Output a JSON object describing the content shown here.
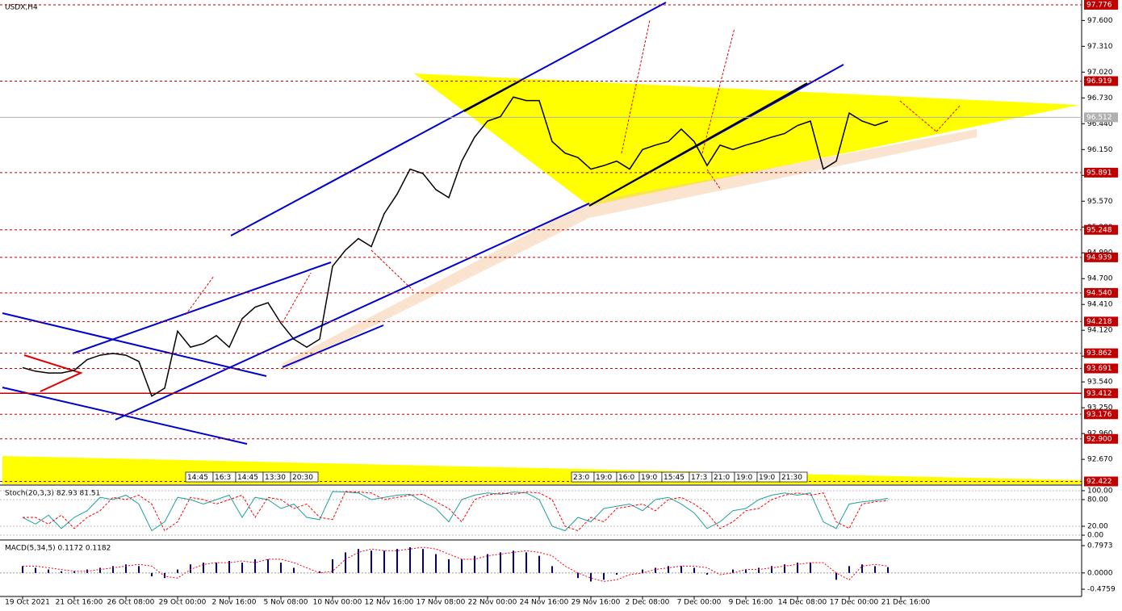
{
  "chart_data": [
    {
      "type": "line",
      "title": "USDX,H4",
      "categories": [
        "19 Oct 2021",
        null,
        null,
        null,
        "21 Oct 16:00",
        null,
        null,
        null,
        "26 Oct 08:00",
        null,
        null,
        null,
        "29 Oct 00:00",
        null,
        null,
        null,
        "2 Nov 16:00",
        null,
        null,
        null,
        "5 Nov 08:00",
        null,
        null,
        null,
        "10 Nov 00:00",
        null,
        null,
        null,
        "12 Nov 16:00",
        null,
        null,
        null,
        "17 Nov 08:00",
        null,
        null,
        null,
        "22 Nov 00:00",
        null,
        null,
        null,
        "24 Nov 16:00",
        null,
        null,
        null,
        "29 Nov 16:00",
        null,
        null,
        null,
        "2 Dec 08:00",
        null,
        null,
        null,
        "7 Dec 00:00",
        null,
        null,
        null,
        "9 Dec 16:00",
        null,
        null,
        null,
        "14 Dec 08:00",
        null,
        null,
        null,
        "17 Dec 00:00",
        null,
        null,
        null,
        "21 Dec 16:00"
      ],
      "series": [
        {
          "color": "#000000",
          "values": [
            93.7,
            93.66,
            93.64,
            93.64,
            93.67,
            93.79,
            93.84,
            93.86,
            93.84,
            93.77,
            93.38,
            93.47,
            94.11,
            93.93,
            93.97,
            94.06,
            93.93,
            94.25,
            94.38,
            94.43,
            94.2,
            94.02,
            93.93,
            94.02,
            94.84,
            95.02,
            95.15,
            95.06,
            95.43,
            95.65,
            95.93,
            95.88,
            95.7,
            95.61,
            96.02,
            96.29,
            96.47,
            96.52,
            96.74,
            96.7,
            96.7,
            96.24,
            96.11,
            96.06,
            95.93,
            95.97,
            96.02,
            95.93,
            96.15,
            96.2,
            96.24,
            96.38,
            96.24,
            95.97,
            96.2,
            96.15,
            96.2,
            96.24,
            96.29,
            96.33,
            96.42,
            96.47,
            95.93,
            96.02,
            96.56,
            96.47,
            96.42,
            96.47,
            null
          ]
        }
      ],
      "ylim": [
        92.39,
        97.83
      ],
      "yticks": [
        {
          "value": 97.6,
          "label": "97.600"
        },
        {
          "value": 97.31,
          "label": "97.310"
        },
        {
          "value": 97.02,
          "label": "97.020"
        },
        {
          "value": 96.73,
          "label": "96.730"
        },
        {
          "value": 96.44,
          "label": "96.440"
        },
        {
          "value": 96.15,
          "label": "96.150"
        },
        {
          "value": 95.86,
          "label": "95.860"
        },
        {
          "value": 95.57,
          "label": "95.570"
        },
        {
          "value": 95.28,
          "label": "95.280"
        },
        {
          "value": 94.99,
          "label": "94.990"
        },
        {
          "value": 94.7,
          "label": "94.700"
        },
        {
          "value": 94.41,
          "label": "94.410"
        },
        {
          "value": 94.12,
          "label": "94.120"
        },
        {
          "value": 93.83,
          "label": "93.830"
        },
        {
          "value": 93.54,
          "label": "93.540"
        },
        {
          "value": 93.25,
          "label": "93.250"
        },
        {
          "value": 92.96,
          "label": "92.960"
        },
        {
          "value": 92.67,
          "label": "92.670"
        }
      ],
      "levels": [
        97.776,
        96.919,
        95.891,
        95.248,
        94.939,
        {
          "value": 94.54,
          "label": "94.540"
        },
        94.218,
        93.862,
        93.691,
        93.412,
        93.176,
        {
          "value": 92.9,
          "label": "92.900"
        },
        92.422
      ],
      "solid_level": 93.412,
      "level_color": "#c00000",
      "current_price": 96.512,
      "current_color": "#b0b0b0",
      "time_labels": [
        [
          "14:45",
          "16:3",
          "14:45",
          "13:30",
          "20:30"
        ],
        [
          "23:0",
          "19:0",
          "16:0",
          "19:0",
          "15:45",
          "17:3",
          "21:0",
          "19:0",
          "19:0",
          "21:30"
        ]
      ]
    },
    {
      "type": "line",
      "title": "Stoch(20,3,3) 82.93 81.51",
      "ylim": [
        -9,
        109
      ],
      "yticks": [
        {
          "value": 100,
          "label": "100.00"
        },
        {
          "value": 80,
          "label": "80.00"
        },
        {
          "value": 20,
          "label": "20.00"
        },
        {
          "value": 0,
          "label": "0.00"
        }
      ],
      "series": [
        {
          "color": "#20a0a0",
          "values": [
            40,
            25,
            45,
            15,
            40,
            55,
            85,
            80,
            90,
            70,
            10,
            30,
            85,
            80,
            70,
            80,
            90,
            40,
            85,
            80,
            60,
            70,
            40,
            35,
            98,
            97,
            95,
            80,
            85,
            90,
            92,
            75,
            60,
            30,
            80,
            90,
            95,
            92,
            97,
            95,
            80,
            20,
            10,
            40,
            30,
            60,
            65,
            70,
            55,
            80,
            85,
            70,
            50,
            15,
            30,
            55,
            60,
            80,
            90,
            95,
            90,
            95,
            30,
            15,
            70,
            75,
            78,
            83,
            null
          ]
        },
        {
          "color": "#ff0000",
          "values": [
            40,
            40,
            25,
            45,
            15,
            40,
            55,
            85,
            80,
            90,
            70,
            10,
            30,
            85,
            80,
            70,
            80,
            90,
            40,
            85,
            80,
            60,
            70,
            40,
            35,
            98,
            97,
            95,
            80,
            85,
            90,
            92,
            75,
            60,
            30,
            80,
            90,
            95,
            92,
            97,
            95,
            80,
            20,
            10,
            40,
            30,
            60,
            65,
            70,
            55,
            80,
            85,
            70,
            50,
            15,
            30,
            55,
            60,
            80,
            90,
            95,
            90,
            95,
            30,
            15,
            70,
            75,
            78,
            null
          ]
        }
      ]
    },
    {
      "type": "macd",
      "title": "MACD(5,34,5) 0.1172 0.1182",
      "ylim": [
        -0.64,
        0.915
      ],
      "yticks": [
        0.7973,
        {
          "value": 0,
          "label": "0.0000"
        },
        -0.4759
      ],
      "series": [
        {
          "color": "#00008b",
          "values": [
            0.2,
            0.15,
            0.1,
            0.05,
            0.05,
            0.1,
            0.15,
            0.2,
            0.25,
            0.2,
            -0.1,
            -0.15,
            0.1,
            0.25,
            0.3,
            0.3,
            0.35,
            0.3,
            0.4,
            0.4,
            0.3,
            0.15,
            0.0,
            0.05,
            0.4,
            0.6,
            0.7,
            0.65,
            0.65,
            0.7,
            0.75,
            0.7,
            0.55,
            0.4,
            0.4,
            0.5,
            0.55,
            0.6,
            0.65,
            0.6,
            0.5,
            0.2,
            0.0,
            -0.15,
            -0.25,
            -0.2,
            -0.05,
            0.0,
            0.1,
            0.15,
            0.2,
            0.2,
            0.15,
            -0.05,
            0.0,
            0.1,
            0.1,
            0.15,
            0.2,
            0.25,
            0.3,
            0.3,
            0.0,
            -0.2,
            0.2,
            0.25,
            0.2,
            0.17,
            null
          ]
        },
        {
          "color": "#ff0000",
          "values": [
            0.2,
            0.2,
            0.15,
            0.1,
            0.05,
            0.05,
            0.1,
            0.15,
            0.2,
            0.25,
            0.2,
            -0.1,
            -0.15,
            0.1,
            0.25,
            0.3,
            0.3,
            0.35,
            0.3,
            0.4,
            0.4,
            0.3,
            0.15,
            0.0,
            0.05,
            0.4,
            0.6,
            0.7,
            0.65,
            0.65,
            0.7,
            0.75,
            0.7,
            0.55,
            0.4,
            0.4,
            0.5,
            0.55,
            0.6,
            0.65,
            0.6,
            0.5,
            0.2,
            0.0,
            -0.15,
            -0.25,
            -0.2,
            -0.05,
            0.0,
            0.1,
            0.15,
            0.2,
            0.2,
            0.15,
            -0.05,
            0.0,
            0.1,
            0.1,
            0.15,
            0.2,
            0.25,
            0.3,
            0.3,
            0.0,
            -0.2,
            0.2,
            0.25,
            0.2,
            null
          ]
        }
      ]
    }
  ]
}
